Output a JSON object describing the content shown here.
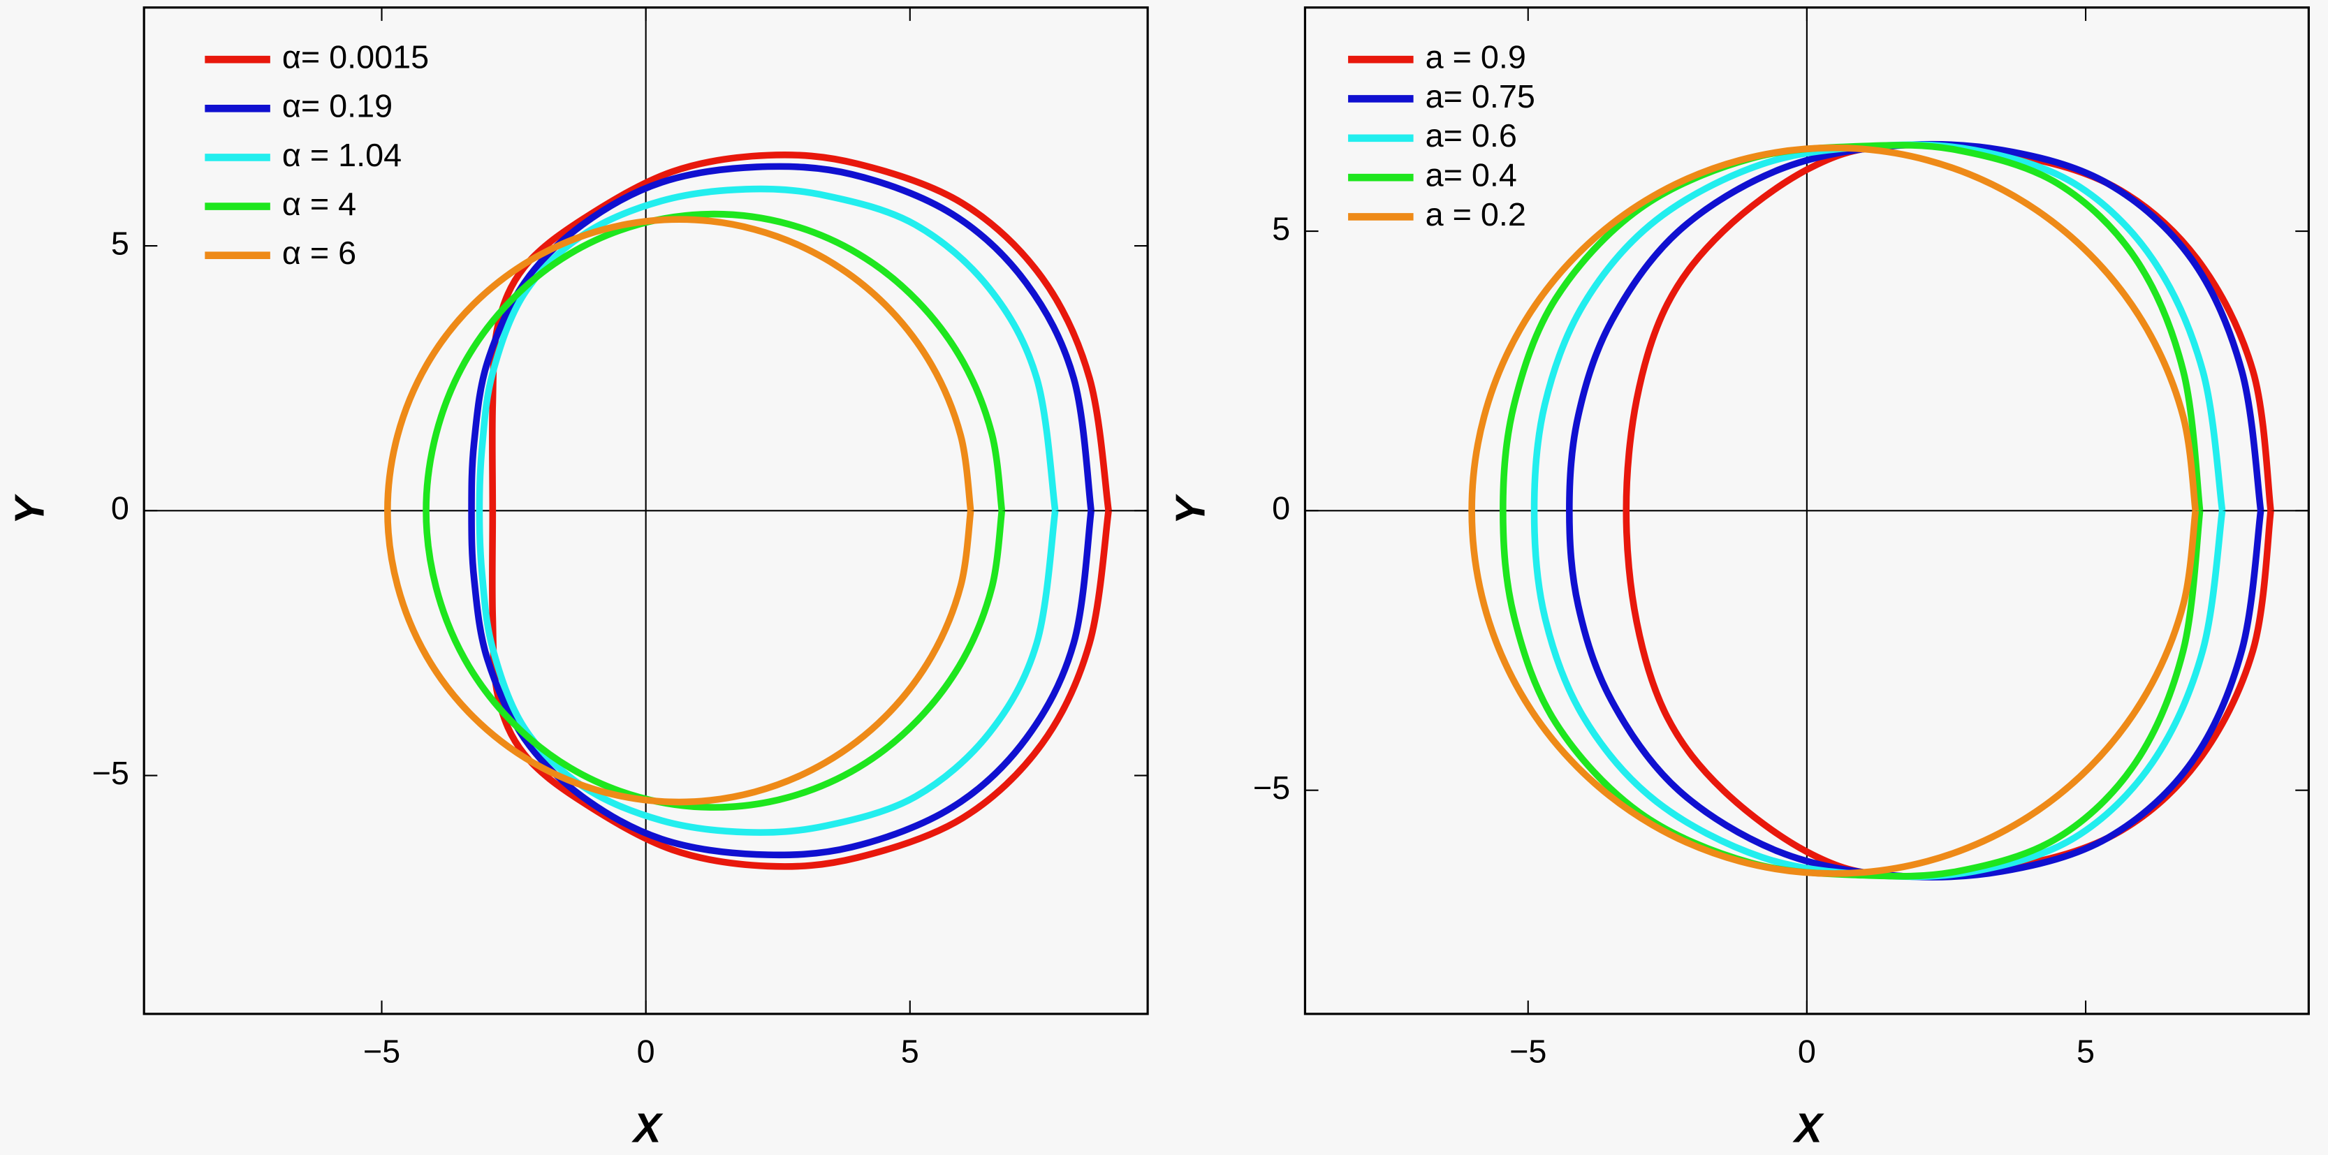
{
  "chart_data": [
    {
      "type": "line",
      "xlabel": "X",
      "ylabel": "Y",
      "xlim": [
        -9.5,
        9.5
      ],
      "ylim": [
        -9.5,
        9.5
      ],
      "xticks": [
        {
          "value": -5,
          "label": "−5"
        },
        0,
        5
      ],
      "yticks": [
        {
          "value": -5,
          "label": "−5"
        },
        0,
        5
      ],
      "legend": "upper left",
      "series": [
        {
          "name": "α= 0.0015",
          "color": "#e8180c",
          "x": [
            8.76,
            8.4,
            7.5,
            6,
            4,
            2.3,
            0.5,
            -1.2,
            -2.3,
            -2.8,
            -2.9,
            -2.9,
            -2.9,
            -2.8,
            -2.3,
            -1.2,
            0.5,
            2.3,
            4,
            6,
            7.5,
            8.4,
            8.76
          ],
          "y": [
            0,
            2.5,
            4.4,
            5.8,
            6.55,
            6.71,
            6.4,
            5.5,
            4.6,
            3.5,
            2.0,
            0,
            -2.0,
            -3.5,
            -4.6,
            -5.5,
            -6.4,
            -6.71,
            -6.55,
            -5.8,
            -4.4,
            -2.5,
            0
          ]
        },
        {
          "name": "α= 0.19",
          "color": "#1010d0",
          "x": [
            8.43,
            8.1,
            7.2,
            5.8,
            3.9,
            2.1,
            0.3,
            -1.2,
            -2.3,
            -3.0,
            -3.25,
            -3.3,
            -3.25,
            -3.0,
            -2.3,
            -1.2,
            0.3,
            2.1,
            3.9,
            5.8,
            7.2,
            8.1,
            8.43
          ],
          "y": [
            0,
            2.5,
            4.3,
            5.6,
            6.35,
            6.49,
            6.2,
            5.4,
            4.3,
            2.8,
            1.3,
            0,
            -1.3,
            -2.8,
            -4.3,
            -5.4,
            -6.2,
            -6.49,
            -6.35,
            -5.6,
            -4.3,
            -2.5,
            0
          ]
        },
        {
          "name": "α = 1.04",
          "color": "#22eeee",
          "x": [
            7.75,
            7.4,
            6.5,
            5.1,
            3.4,
            1.9,
            0.3,
            -1.2,
            -2.3,
            -2.9,
            -3.1,
            -3.15,
            -3.1,
            -2.9,
            -2.3,
            -1.2,
            0.3,
            1.9,
            3.4,
            5.1,
            6.5,
            7.4,
            7.75
          ],
          "y": [
            0,
            2.5,
            4.2,
            5.4,
            5.95,
            6.07,
            5.85,
            5.2,
            4.1,
            2.6,
            1.2,
            0,
            -1.2,
            -2.6,
            -4.1,
            -5.2,
            -5.85,
            -6.07,
            -5.95,
            -5.4,
            -4.2,
            -2.5,
            0
          ]
        },
        {
          "name": "α = 4",
          "color": "#1ee61e",
          "x": [
            6.74,
            6.55,
            6.01,
            5.14,
            4.02,
            2.7,
            1.29,
            -0.12,
            -1.44,
            -2.56,
            -3.43,
            -3.97,
            -4.16,
            -3.97,
            -3.43,
            -2.56,
            -1.44,
            -0.12,
            1.29,
            2.7,
            4.02,
            5.14,
            6.01,
            6.55,
            6.74
          ],
          "y": [
            0,
            1.45,
            2.8,
            3.96,
            4.85,
            5.41,
            5.6,
            5.41,
            4.85,
            3.96,
            2.8,
            1.45,
            0,
            -1.45,
            -2.8,
            -3.96,
            -4.85,
            -5.41,
            -5.6,
            -5.41,
            -4.85,
            -3.96,
            -2.8,
            -1.45,
            0
          ]
        },
        {
          "name": "α = 6",
          "color": "#ee8a18",
          "x": [
            6.15,
            5.96,
            5.41,
            4.53,
            3.39,
            2.06,
            0.63,
            -0.8,
            -2.13,
            -3.27,
            -4.15,
            -4.7,
            -4.89,
            -4.7,
            -4.15,
            -3.27,
            -2.13,
            -0.8,
            0.63,
            2.06,
            3.39,
            4.53,
            5.41,
            5.96,
            6.15
          ],
          "y": [
            0,
            1.42,
            2.75,
            3.89,
            4.76,
            5.31,
            5.5,
            5.31,
            4.76,
            3.89,
            2.75,
            1.42,
            0,
            -1.42,
            -2.75,
            -3.89,
            -4.76,
            -5.31,
            -5.5,
            -5.31,
            -4.76,
            -3.89,
            -2.75,
            -1.42,
            0
          ]
        }
      ]
    },
    {
      "type": "line",
      "xlabel": "X",
      "ylabel": "Y",
      "xlim": [
        -9,
        9
      ],
      "ylim": [
        -9,
        9
      ],
      "xticks": [
        {
          "value": -5,
          "label": "−5"
        },
        0,
        5
      ],
      "yticks": [
        {
          "value": -5,
          "label": "−5"
        },
        0,
        5
      ],
      "legend": "upper left",
      "series": [
        {
          "name": "a = 0.9",
          "color": "#e8180c",
          "x": [
            8.32,
            8.0,
            7.0,
            5.5,
            3.5,
            1.4,
            0,
            -1.5,
            -2.5,
            -3.05,
            -3.24,
            -3.05,
            -2.5,
            -1.5,
            0,
            1.4,
            3.5,
            5.5,
            7.0,
            8.0,
            8.32
          ],
          "y": [
            0,
            2.5,
            4.5,
            5.8,
            6.4,
            6.52,
            6.1,
            5.0,
            3.7,
            2.0,
            0,
            -2.0,
            -3.7,
            -5.0,
            -6.1,
            -6.52,
            -6.4,
            -5.8,
            -4.5,
            -2.5,
            0
          ]
        },
        {
          "name": "a= 0.75",
          "color": "#1010d0",
          "x": [
            8.14,
            7.8,
            6.9,
            5.4,
            3.5,
            1.5,
            -0.5,
            -2.3,
            -3.5,
            -4.1,
            -4.26,
            -4.1,
            -3.5,
            -2.3,
            -0.5,
            1.5,
            3.5,
            5.4,
            6.9,
            7.8,
            8.14
          ],
          "y": [
            0,
            2.5,
            4.5,
            5.85,
            6.45,
            6.52,
            6.1,
            5.0,
            3.4,
            1.7,
            0,
            -1.7,
            -3.4,
            -5.0,
            -6.1,
            -6.52,
            -6.45,
            -5.85,
            -4.5,
            -2.5,
            0
          ]
        },
        {
          "name": "a= 0.6",
          "color": "#22eeee",
          "x": [
            7.45,
            7.1,
            6.2,
            4.8,
            3.0,
            1.2,
            -0.8,
            -2.7,
            -4.0,
            -4.7,
            -4.89,
            -4.7,
            -4.0,
            -2.7,
            -0.8,
            1.2,
            3.0,
            4.8,
            6.2,
            7.1,
            7.45
          ],
          "y": [
            0,
            2.5,
            4.5,
            5.85,
            6.45,
            6.52,
            6.2,
            5.2,
            3.7,
            1.9,
            0,
            -1.9,
            -3.7,
            -5.2,
            -6.2,
            -6.52,
            -6.45,
            -5.85,
            -4.5,
            -2.5,
            0
          ]
        },
        {
          "name": "a= 0.4",
          "color": "#1ee61e",
          "x": [
            7.05,
            6.75,
            5.9,
            4.5,
            2.7,
            1.0,
            -1.0,
            -3.0,
            -4.5,
            -5.25,
            -5.45,
            -5.25,
            -4.5,
            -3.0,
            -1.0,
            1.0,
            2.7,
            4.5,
            5.9,
            6.75,
            7.05
          ],
          "y": [
            0,
            2.5,
            4.5,
            5.85,
            6.45,
            6.52,
            6.3,
            5.4,
            3.8,
            1.9,
            0,
            -1.9,
            -3.8,
            -5.4,
            -6.3,
            -6.52,
            -6.45,
            -5.85,
            -4.5,
            -2.5,
            0
          ]
        },
        {
          "name": "a = 0.2",
          "color": "#ee8a18",
          "x": [
            6.97,
            6.75,
            6.1,
            5.07,
            3.73,
            2.16,
            0.48,
            -1.2,
            -2.77,
            -4.11,
            -5.14,
            -5.79,
            -6.01,
            -5.79,
            -5.14,
            -4.11,
            -2.77,
            -1.2,
            0.48,
            2.16,
            3.73,
            5.07,
            6.1,
            6.75,
            6.97
          ],
          "y": [
            0,
            1.68,
            3.25,
            4.59,
            5.62,
            6.27,
            6.49,
            6.27,
            5.62,
            4.59,
            3.25,
            1.68,
            0,
            -1.68,
            -3.25,
            -4.59,
            -5.62,
            -6.27,
            -6.49,
            -6.27,
            -5.62,
            -4.59,
            -3.25,
            -1.68,
            0
          ]
        }
      ]
    }
  ]
}
